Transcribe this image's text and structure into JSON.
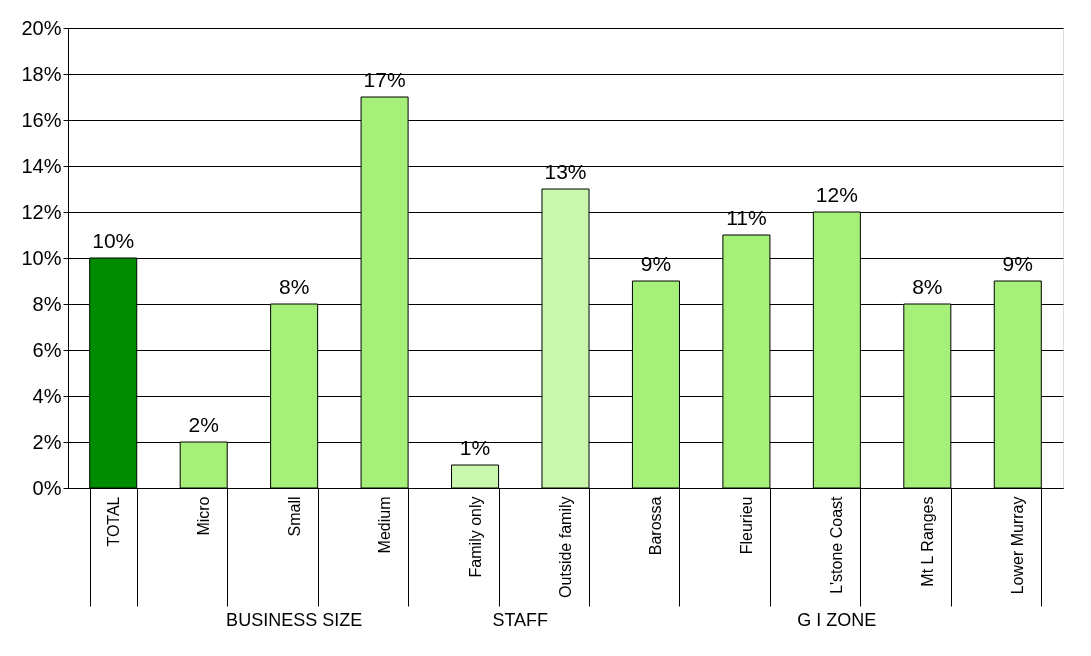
{
  "chart_data": {
    "type": "bar",
    "categories": [
      "TOTAL",
      "Micro",
      "Small",
      "Medium",
      "Family only",
      "Outside family",
      "Barossa",
      "Fleurieu",
      "L'stone Coast",
      "Mt L Ranges",
      "Lower Murray"
    ],
    "values": [
      10,
      2,
      8,
      17,
      1,
      13,
      9,
      11,
      12,
      8,
      9
    ],
    "colors": [
      "#008c00",
      "#a6f07a",
      "#a6f07a",
      "#a6f07a",
      "#c9f7ae",
      "#c9f7ae",
      "#a6f07a",
      "#a6f07a",
      "#a6f07a",
      "#a6f07a",
      "#a6f07a"
    ],
    "value_labels": [
      "10%",
      "2%",
      "8%",
      "17%",
      "1%",
      "13%",
      "9%",
      "11%",
      "12%",
      "8%",
      "9%"
    ],
    "ylim": [
      0,
      20
    ],
    "yticks": [
      {
        "value": 0,
        "label": "0%"
      },
      {
        "value": 2,
        "label": "2%"
      },
      {
        "value": 4,
        "label": "4%"
      },
      {
        "value": 6,
        "label": "6%"
      },
      {
        "value": 8,
        "label": "8%"
      },
      {
        "value": 10,
        "label": "10%"
      },
      {
        "value": 12,
        "label": "12%"
      },
      {
        "value": 14,
        "label": "14%"
      },
      {
        "value": 16,
        "label": "16%"
      },
      {
        "value": 18,
        "label": "18%"
      },
      {
        "value": 20,
        "label": "20%"
      }
    ],
    "grid": "y",
    "annotations": [
      "BUSINESS SIZE",
      "STAFF",
      "G I ZONE"
    ]
  }
}
